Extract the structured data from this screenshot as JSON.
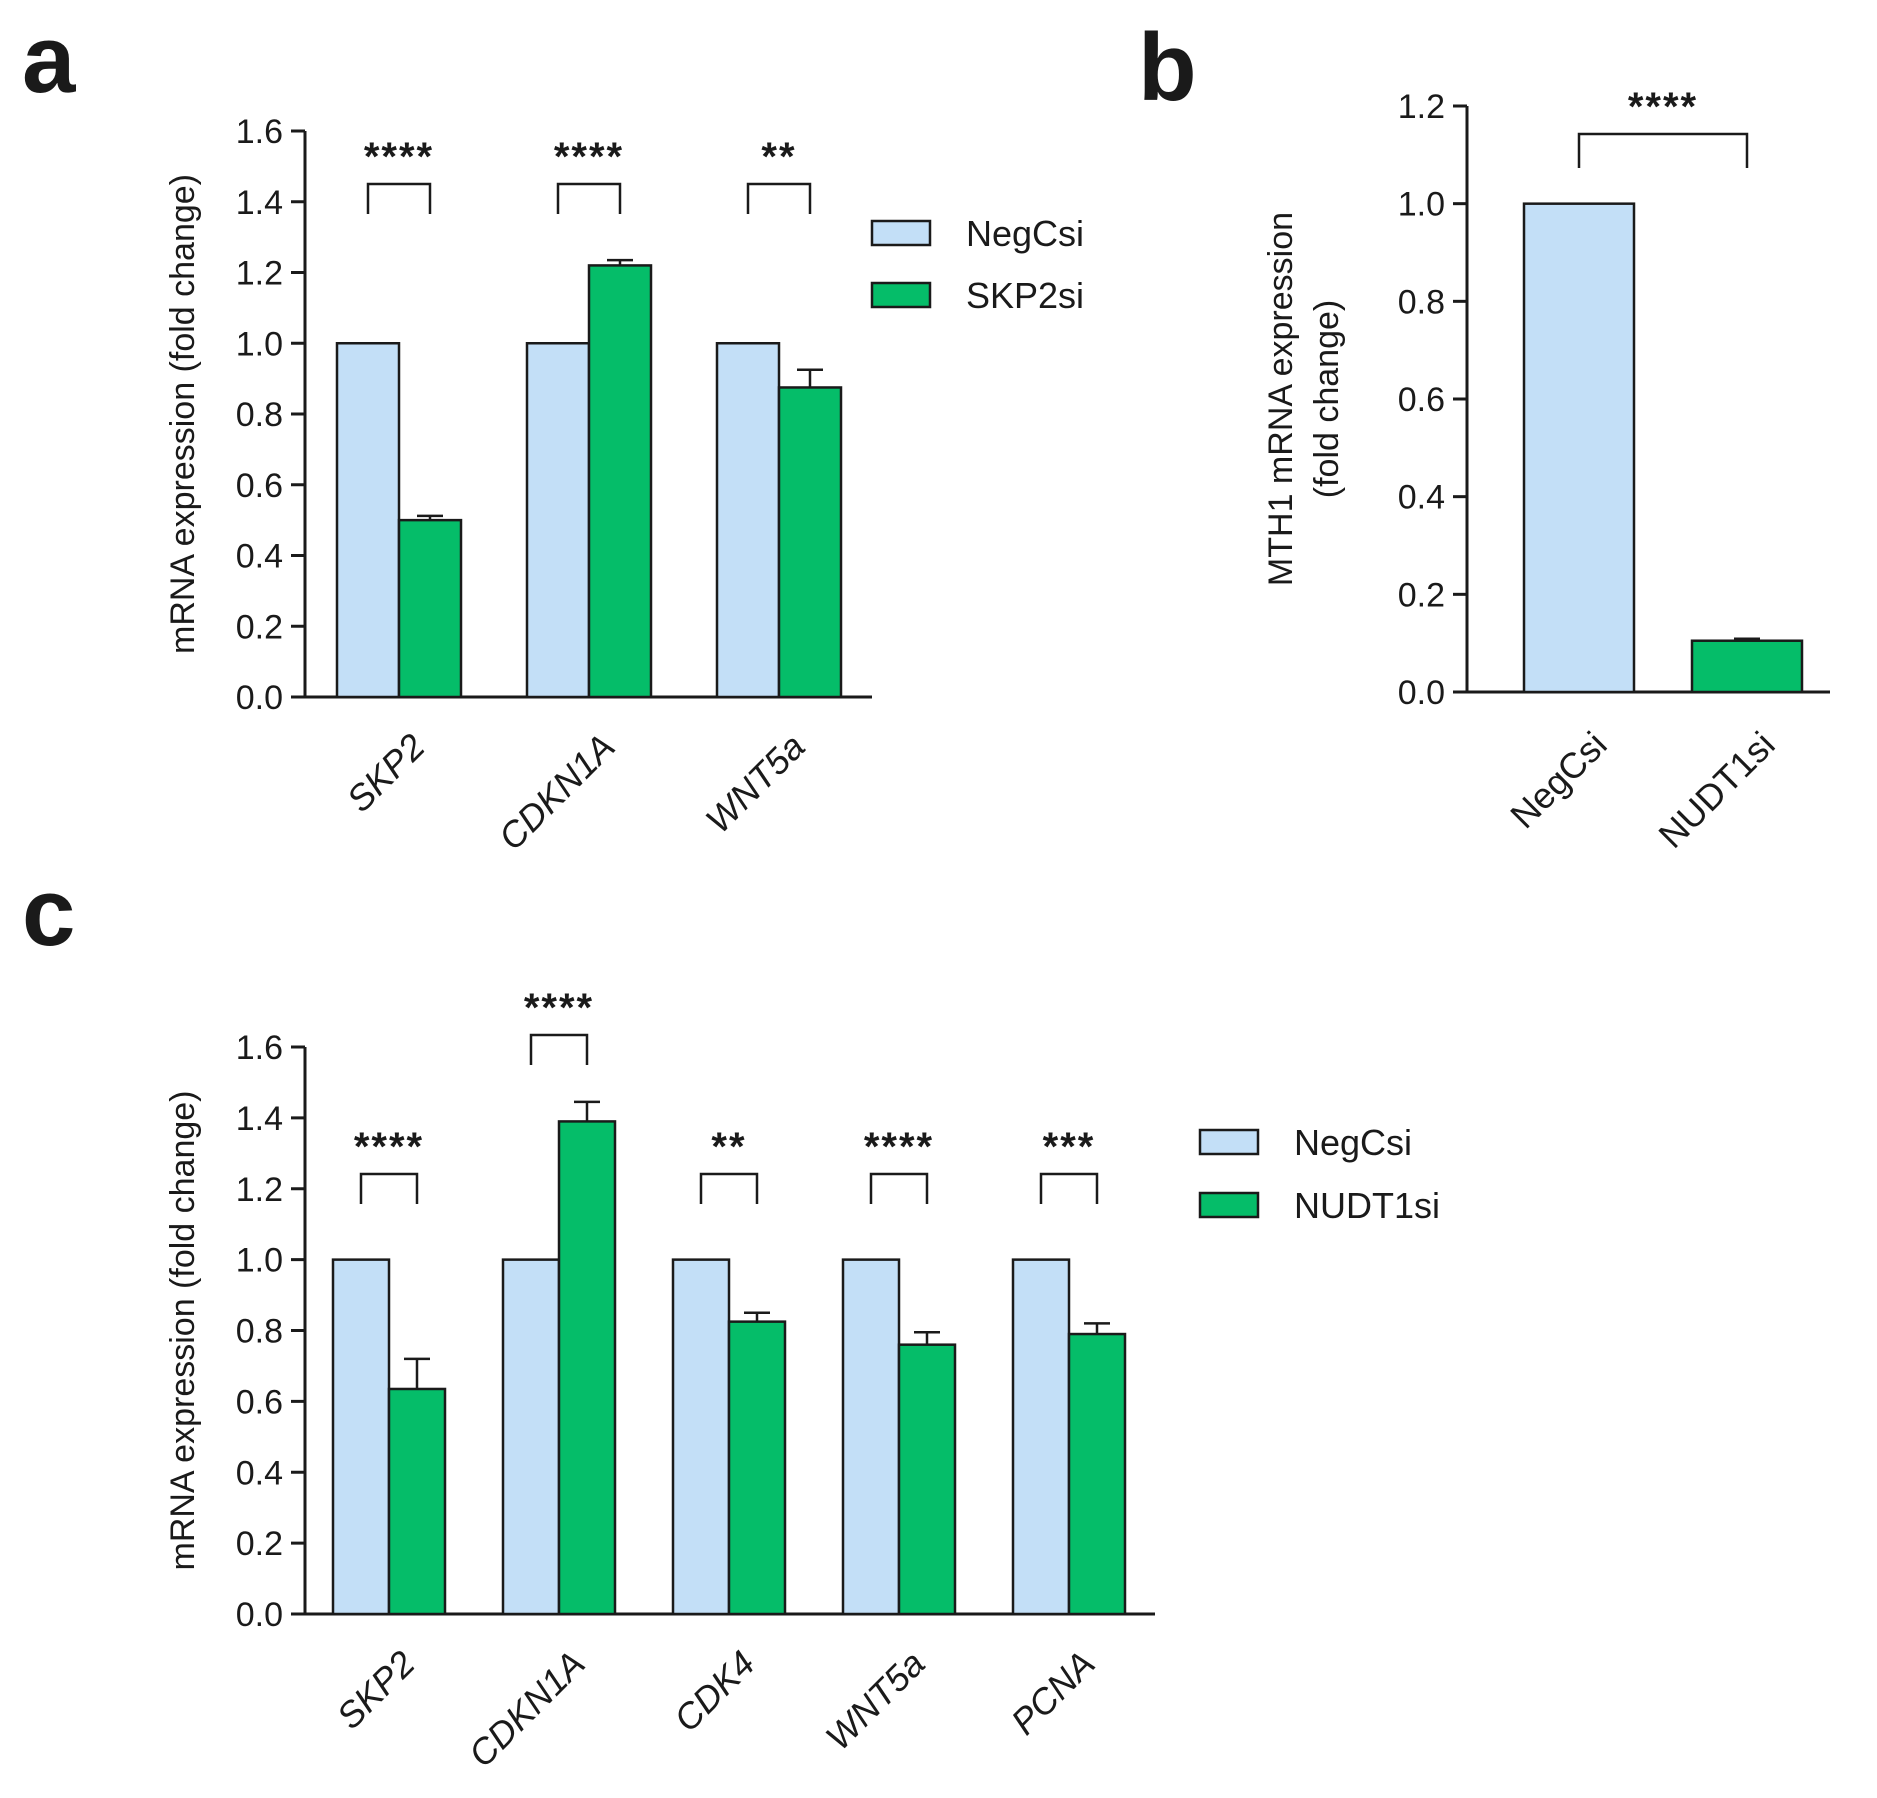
{
  "colors": {
    "negcsi": "#c3dff7",
    "knockdown": "#05bd69",
    "axis": "#1a1a1a"
  },
  "chart_data": [
    {
      "panel": "a",
      "type": "bar",
      "ylabel": "mRNA expression (fold change)",
      "ylim": [
        0,
        1.6
      ],
      "yticks": [
        "0.0",
        "0.2",
        "0.4",
        "0.6",
        "0.8",
        "1.0",
        "1.2",
        "1.4",
        "1.6"
      ],
      "categories": [
        "SKP2",
        "CDKN1A",
        "WNT5a"
      ],
      "categories_italic": true,
      "series": [
        {
          "name": "NegCsi",
          "values": [
            1.0,
            1.0,
            1.0
          ],
          "errors": [
            0,
            0,
            0
          ]
        },
        {
          "name": "SKP2si",
          "values": [
            0.5,
            1.22,
            0.875
          ],
          "errors": [
            0.012,
            0.015,
            0.05
          ]
        }
      ],
      "significance": [
        "****",
        "****",
        "**"
      ],
      "legend": "right"
    },
    {
      "panel": "b",
      "type": "bar",
      "ylabel": "MTH1 mRNA expression (fold change)",
      "ylabel_lines": [
        "MTH1 mRNA expression",
        "(fold change)"
      ],
      "ylim": [
        0,
        1.2
      ],
      "yticks": [
        "0.0",
        "0.2",
        "0.4",
        "0.6",
        "0.8",
        "1.0",
        "1.2"
      ],
      "categories": [
        "NegCsi",
        "NUDT1si"
      ],
      "categories_italic": false,
      "values": [
        1.0,
        0.105
      ],
      "errors": [
        0,
        0.004
      ],
      "significance": [
        "****"
      ],
      "legend": "none"
    },
    {
      "panel": "c",
      "type": "bar",
      "ylabel": "mRNA expression (fold change)",
      "ylim": [
        0,
        1.6
      ],
      "yticks": [
        "0.0",
        "0.2",
        "0.4",
        "0.6",
        "0.8",
        "1.0",
        "1.2",
        "1.4",
        "1.6"
      ],
      "categories": [
        "SKP2",
        "CDKN1A",
        "CDK4",
        "WNT5a",
        "PCNA"
      ],
      "categories_italic": true,
      "series": [
        {
          "name": "NegCsi",
          "values": [
            1.0,
            1.0,
            1.0,
            1.0,
            1.0
          ],
          "errors": [
            0,
            0,
            0,
            0,
            0
          ]
        },
        {
          "name": "NUDT1si",
          "values": [
            0.635,
            1.39,
            0.825,
            0.76,
            0.79
          ],
          "errors": [
            0.085,
            0.055,
            0.025,
            0.035,
            0.03
          ]
        }
      ],
      "significance": [
        "****",
        "****",
        "**",
        "****",
        "***"
      ],
      "legend": "right"
    }
  ]
}
